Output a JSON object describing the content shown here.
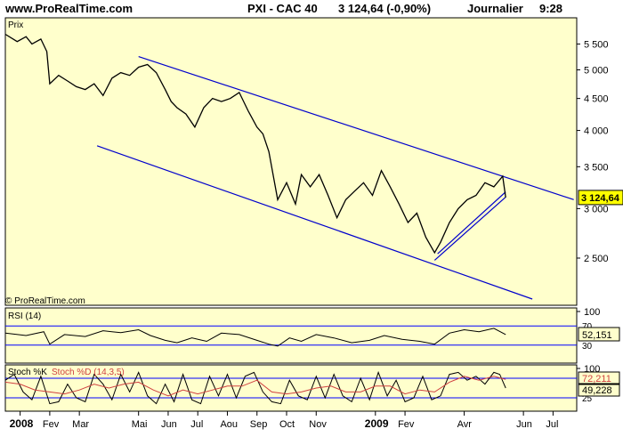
{
  "header": {
    "site": "www.ProRealTime.com",
    "instrument": "PXI - CAC 40",
    "price": "3 124,64 (-0,90%)",
    "period": "Journalier",
    "time": "9:28"
  },
  "colors": {
    "panel_bg": "#ffffcc",
    "price_line": "#000000",
    "channel": "#0000cc",
    "stoch_d": "#d04040",
    "grid": "#0000ff"
  },
  "chart_data": [
    {
      "type": "line",
      "panel": "price",
      "label": "Prix",
      "watermark": "© ProRealTime.com",
      "last_price_label": "3 124,64",
      "y_scale": "log",
      "ylim": [
        2150,
        5900
      ],
      "y_ticks": [
        "5 500",
        "5 000",
        "4 500",
        "4 000",
        "3 500",
        "3 000",
        "2 500"
      ],
      "y_tick_values": [
        5500,
        5000,
        4500,
        4000,
        3500,
        3000,
        2500
      ],
      "x_tick_labels": [
        "2008",
        "Fev",
        "Mar",
        "Mai",
        "Jun",
        "Jul",
        "Aou",
        "Sep",
        "Oct",
        "Nov",
        "2009",
        "Fev",
        "Avr",
        "Jun",
        "Jul"
      ],
      "x_tick_months": [
        0,
        1,
        2,
        4,
        5,
        6,
        7,
        8,
        9,
        10,
        12,
        13,
        15,
        17,
        18
      ],
      "xlim_months": [
        -0.5,
        18.8
      ],
      "x_unit": "months since Jan 2008",
      "series": [
        {
          "values_x": [
            -0.5,
            -0.1,
            0.2,
            0.4,
            0.7,
            0.9,
            1.0,
            1.3,
            1.6,
            1.9,
            2.2,
            2.5,
            2.8,
            3.1,
            3.4,
            3.7,
            4.0,
            4.3,
            4.6,
            4.9,
            5.1,
            5.3,
            5.6,
            5.9,
            6.2,
            6.5,
            6.8,
            7.1,
            7.4,
            7.7,
            8.0,
            8.2,
            8.4,
            8.7,
            9.0,
            9.3,
            9.5,
            9.8,
            10.1,
            10.4,
            10.7,
            11.0,
            11.3,
            11.6,
            11.9,
            12.2,
            12.5,
            12.8,
            13.1,
            13.4,
            13.7,
            14.0,
            14.2,
            14.5,
            14.8,
            15.1,
            15.4,
            15.7,
            16.0,
            16.3,
            16.4
          ],
          "values_y": [
            5700,
            5550,
            5650,
            5500,
            5600,
            5350,
            4750,
            4900,
            4800,
            4700,
            4650,
            4750,
            4550,
            4850,
            4950,
            4900,
            5050,
            5100,
            4950,
            4650,
            4450,
            4350,
            4250,
            4050,
            4350,
            4500,
            4450,
            4500,
            4600,
            4300,
            4050,
            3950,
            3700,
            3100,
            3300,
            3050,
            3400,
            3250,
            3400,
            3150,
            2900,
            3100,
            3200,
            3300,
            3150,
            3450,
            3250,
            3050,
            2850,
            2950,
            2700,
            2550,
            2650,
            2850,
            3000,
            3100,
            3150,
            3300,
            3250,
            3380,
            3125
          ]
        }
      ],
      "channel_lines": [
        {
          "from": [
            4.0,
            5250
          ],
          "to": [
            18.7,
            3100
          ]
        },
        {
          "from": [
            2.6,
            3780
          ],
          "to": [
            17.3,
            2150
          ]
        },
        {
          "from": [
            14.0,
            2480
          ],
          "to": [
            16.4,
            3130
          ]
        },
        {
          "from": [
            14.1,
            2540
          ],
          "to": [
            16.4,
            3190
          ]
        }
      ]
    },
    {
      "type": "line",
      "panel": "rsi",
      "label": "RSI (14)",
      "value_label": "52,151",
      "ylim": [
        0,
        100
      ],
      "y_ticks": [
        "100"
      ],
      "y_tick_values": [
        100
      ],
      "levels": [
        "70",
        "30"
      ],
      "level_values": [
        70,
        30
      ],
      "series": [
        {
          "values_x": [
            -0.5,
            0.2,
            0.8,
            1.0,
            1.5,
            2.2,
            2.8,
            3.4,
            4.0,
            4.4,
            4.9,
            5.3,
            5.8,
            6.3,
            6.8,
            7.4,
            8.0,
            8.4,
            8.7,
            9.1,
            9.5,
            10.0,
            10.6,
            11.2,
            11.8,
            12.3,
            12.9,
            13.5,
            14.0,
            14.5,
            15.0,
            15.5,
            16.0,
            16.4
          ],
          "values_y": [
            55,
            50,
            58,
            32,
            52,
            48,
            60,
            56,
            62,
            50,
            40,
            35,
            45,
            38,
            55,
            52,
            40,
            32,
            28,
            45,
            38,
            52,
            45,
            35,
            40,
            50,
            42,
            38,
            32,
            55,
            62,
            58,
            65,
            52
          ]
        }
      ]
    },
    {
      "type": "line",
      "panel": "stoch",
      "label": "Stoch %K",
      "label_d": "Stoch %D (14,3,5)",
      "value_labels": [
        "72,211",
        "49,228"
      ],
      "ylim": [
        0,
        100
      ],
      "y_ticks": [
        "100"
      ],
      "y_tick_values": [
        100
      ],
      "levels": [
        "75",
        "25"
      ],
      "level_values": [
        75,
        25
      ],
      "series": [
        {
          "name": "Stoch %K",
          "values_x": [
            -0.5,
            -0.2,
            0.1,
            0.4,
            0.7,
            1.0,
            1.3,
            1.6,
            1.9,
            2.2,
            2.5,
            2.8,
            3.1,
            3.4,
            3.7,
            4.0,
            4.3,
            4.6,
            4.9,
            5.2,
            5.5,
            5.8,
            6.1,
            6.4,
            6.7,
            7.0,
            7.3,
            7.6,
            7.9,
            8.2,
            8.5,
            8.8,
            9.1,
            9.4,
            9.7,
            10.0,
            10.3,
            10.6,
            10.9,
            11.2,
            11.5,
            11.8,
            12.1,
            12.4,
            12.7,
            13.0,
            13.3,
            13.6,
            13.9,
            14.2,
            14.5,
            14.8,
            15.1,
            15.4,
            15.7,
            16.0,
            16.2,
            16.4
          ],
          "values_y": [
            70,
            85,
            40,
            20,
            80,
            10,
            15,
            60,
            25,
            15,
            85,
            60,
            20,
            85,
            40,
            90,
            30,
            10,
            60,
            15,
            85,
            20,
            10,
            80,
            30,
            85,
            25,
            80,
            90,
            40,
            15,
            10,
            70,
            30,
            20,
            80,
            25,
            85,
            30,
            15,
            75,
            20,
            90,
            30,
            70,
            15,
            25,
            80,
            20,
            30,
            85,
            90,
            70,
            80,
            60,
            90,
            85,
            50
          ]
        },
        {
          "name": "Stoch %D",
          "values_x": [
            -0.5,
            0.0,
            0.5,
            1.0,
            1.5,
            2.0,
            2.5,
            3.0,
            3.5,
            4.0,
            4.5,
            5.0,
            5.5,
            6.0,
            6.5,
            7.0,
            7.5,
            8.0,
            8.5,
            9.0,
            9.5,
            10.0,
            10.5,
            11.0,
            11.5,
            12.0,
            12.5,
            13.0,
            13.5,
            14.0,
            14.5,
            15.0,
            15.5,
            16.0,
            16.4
          ],
          "values_y": [
            65,
            60,
            45,
            40,
            35,
            45,
            60,
            50,
            60,
            65,
            45,
            30,
            45,
            35,
            45,
            55,
            55,
            70,
            40,
            35,
            40,
            50,
            55,
            40,
            40,
            55,
            55,
            35,
            45,
            40,
            65,
            80,
            70,
            80,
            72
          ]
        }
      ]
    }
  ]
}
